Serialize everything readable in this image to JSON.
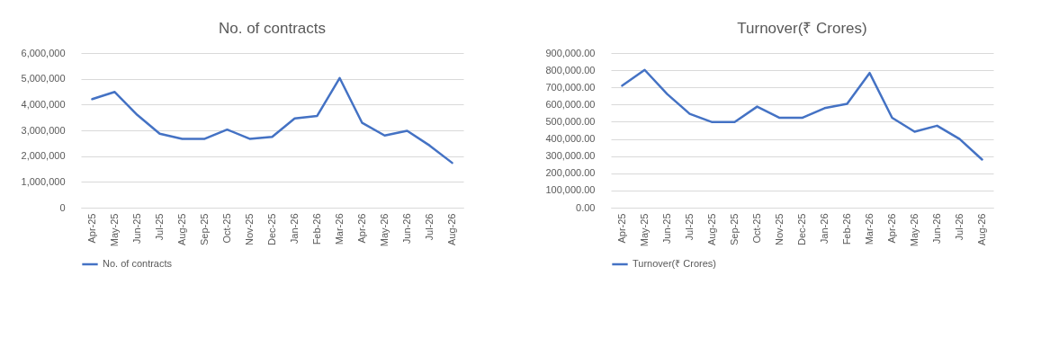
{
  "chart_data": [
    {
      "type": "line",
      "title": "No. of contracts",
      "categories": [
        "Apr-25",
        "May-25",
        "Jun-25",
        "Jul-25",
        "Aug-25",
        "Sep-25",
        "Oct-25",
        "Nov-25",
        "Dec-25",
        "Jan-26",
        "Feb-26",
        "Mar-26",
        "Apr-26",
        "May-26",
        "Jun-26",
        "Jul-26",
        "Aug-26"
      ],
      "series": [
        {
          "name": "No. of contracts",
          "color": "#4472c4",
          "values": [
            4210000,
            4490000,
            3600000,
            2870000,
            2670000,
            2670000,
            3030000,
            2670000,
            2750000,
            3460000,
            3560000,
            5030000,
            3290000,
            2800000,
            2980000,
            2410000,
            1740000
          ]
        }
      ],
      "ylim": [
        0,
        6000000
      ],
      "yticks": [
        0,
        {
          "value": 1000000,
          "label": "1,000,000"
        },
        {
          "value": 2000000,
          "label": "2,000,000"
        },
        {
          "value": 3000000,
          "label": "3,000,000"
        },
        {
          "value": 4000000,
          "label": "4,000,000"
        },
        {
          "value": 5000000,
          "label": "5,000,000"
        },
        {
          "value": 6000000,
          "label": "6,000,000"
        }
      ],
      "grid": "y",
      "legend": "bottom",
      "line_style": "solid"
    },
    {
      "type": "line",
      "title": "Turnover(₹ Crores)",
      "categories": [
        "Apr-25",
        "May-25",
        "Jun-25",
        "Jul-25",
        "Aug-25",
        "Sep-25",
        "Oct-25",
        "Nov-25",
        "Dec-25",
        "Jan-26",
        "Feb-26",
        "Mar-26",
        "Apr-26",
        "May-26",
        "Jun-26",
        "Jul-26",
        "Aug-26"
      ],
      "series": [
        {
          "name": "Turnover(₹ Crores)",
          "color": "#4472c4",
          "values": [
            710000,
            802000,
            661000,
            546000,
            498000,
            498000,
            588000,
            523000,
            523000,
            579000,
            604000,
            784000,
            523000,
            442000,
            477000,
            400000,
            280000
          ]
        }
      ],
      "ylim": [
        0,
        900000
      ],
      "yticks": [
        {
          "value": 0,
          "label": "0.00"
        },
        {
          "value": 100000,
          "label": "100,000.00"
        },
        {
          "value": 200000,
          "label": "200,000.00"
        },
        {
          "value": 300000,
          "label": "300,000.00"
        },
        {
          "value": 400000,
          "label": "400,000.00"
        },
        {
          "value": 500000,
          "label": "500,000.00"
        },
        {
          "value": 600000,
          "label": "600,000.00"
        },
        {
          "value": 700000,
          "label": "700,000.00"
        },
        {
          "value": 800000,
          "label": "800,000.00"
        },
        {
          "value": 900000,
          "label": "900,000.00"
        }
      ],
      "grid": "y",
      "legend": "bottom",
      "line_style": "solid"
    }
  ]
}
